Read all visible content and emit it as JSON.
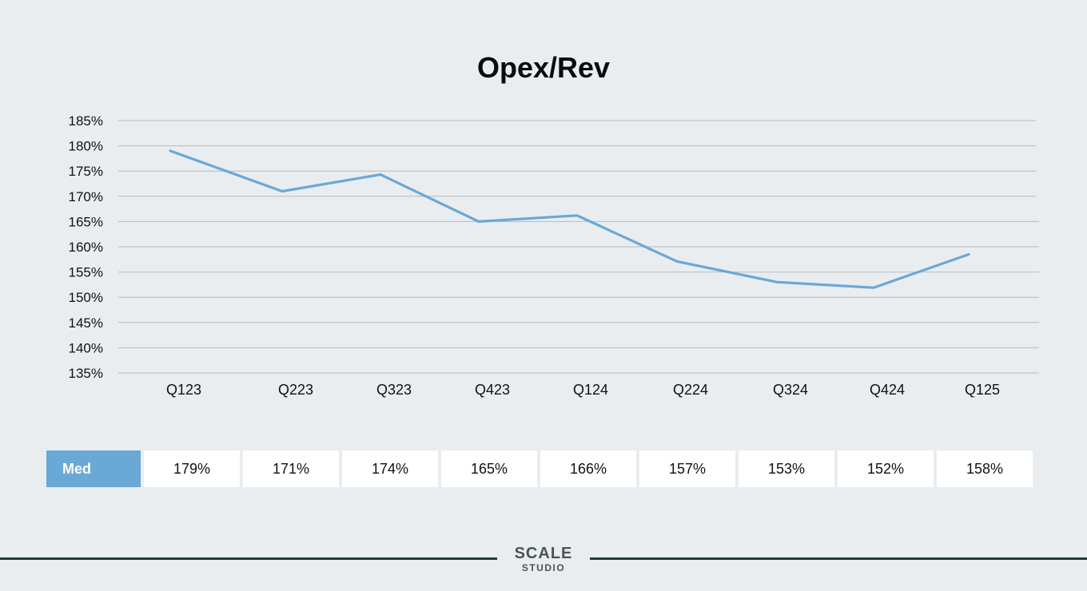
{
  "chart_data": {
    "type": "line",
    "title": "Opex/Rev",
    "xlabel": "",
    "ylabel": "",
    "categories": [
      "Q123",
      "Q223",
      "Q323",
      "Q423",
      "Q124",
      "Q224",
      "Q324",
      "Q424",
      "Q125"
    ],
    "series": [
      {
        "name": "Med",
        "values": [
          179,
          171,
          174.3,
          165,
          166.2,
          157.1,
          153,
          151.9,
          158.5
        ],
        "color": "#6aa8d6"
      }
    ],
    "ylim": [
      135,
      185
    ],
    "yticks": [
      "135%",
      "140%",
      "145%",
      "150%",
      "155%",
      "160%",
      "165%",
      "170%",
      "175%",
      "180%",
      "185%"
    ],
    "grid": true
  },
  "table": {
    "row_label": "Med",
    "cells": [
      "179%",
      "171%",
      "174%",
      "165%",
      "166%",
      "157%",
      "153%",
      "152%",
      "158%"
    ]
  },
  "footer": {
    "logo_main": "SCALE",
    "logo_sub": "STUDIO"
  }
}
